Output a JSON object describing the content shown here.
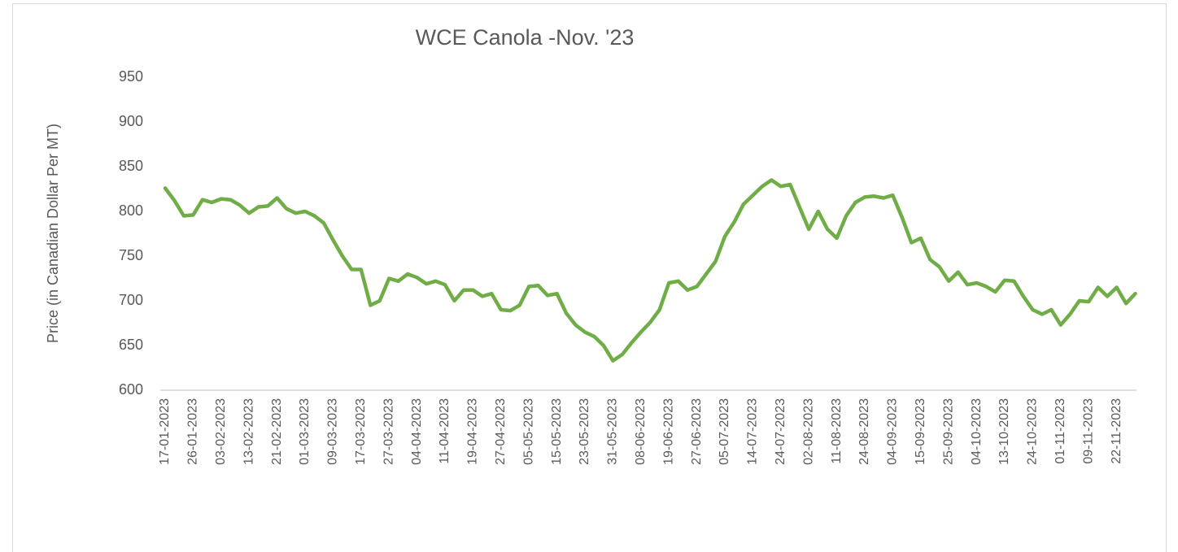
{
  "chart_data": {
    "type": "line",
    "title": "WCE Canola -Nov. '23",
    "y_label": "Price (in Canadian Dollar Per MT)",
    "categories": [
      "17-01-2023",
      null,
      null,
      "26-01-2023",
      null,
      null,
      "03-02-2023",
      null,
      null,
      "13-02-2023",
      null,
      null,
      "21-02-2023",
      null,
      null,
      "01-03-2023",
      null,
      null,
      "09-03-2023",
      null,
      null,
      "17-03-2023",
      null,
      null,
      "27-03-2023",
      null,
      null,
      "04-04-2023",
      null,
      null,
      "11-04-2023",
      null,
      null,
      "19-04-2023",
      null,
      null,
      "27-04-2023",
      null,
      null,
      "05-05-2023",
      null,
      null,
      "15-05-2023",
      null,
      null,
      "23-05-2023",
      null,
      null,
      "31-05-2023",
      null,
      null,
      "08-06-2023",
      null,
      null,
      "19-06-2023",
      null,
      null,
      "27-06-2023",
      null,
      null,
      "05-07-2023",
      null,
      null,
      "14-07-2023",
      null,
      null,
      "24-07-2023",
      null,
      null,
      "02-08-2023",
      null,
      null,
      "11-08-2023",
      null,
      null,
      "24-08-2023",
      null,
      null,
      "04-09-2023",
      null,
      null,
      "15-09-2023",
      null,
      null,
      "25-09-2023",
      null,
      null,
      "04-10-2023",
      null,
      null,
      "13-10-2023",
      null,
      null,
      "24-10-2023",
      null,
      null,
      "01-11-2023",
      null,
      null,
      "09-11-2023",
      null,
      null,
      "22-11-2023",
      null,
      null
    ],
    "values": [
      826,
      812,
      795,
      796,
      813,
      810,
      814,
      813,
      807,
      798,
      805,
      806,
      815,
      803,
      798,
      800,
      795,
      787,
      768,
      750,
      735,
      735,
      695,
      700,
      725,
      722,
      730,
      726,
      719,
      722,
      718,
      700,
      712,
      712,
      705,
      708,
      690,
      689,
      695,
      716,
      717,
      706,
      708,
      686,
      673,
      665,
      660,
      650,
      633,
      640,
      653,
      665,
      676,
      690,
      720,
      722,
      712,
      716,
      730,
      744,
      772,
      788,
      808,
      818,
      828,
      835,
      828,
      830,
      805,
      780,
      800,
      780,
      770,
      795,
      810,
      816,
      817,
      815,
      818,
      793,
      765,
      770,
      746,
      738,
      722,
      732,
      718,
      720,
      716,
      710,
      723,
      722,
      705,
      690,
      685,
      690,
      673,
      685,
      700,
      699,
      715,
      705,
      715,
      697,
      708
    ],
    "color": "#70ad47",
    "ylim": [
      600,
      950
    ],
    "yticks": [
      600,
      650,
      700,
      750,
      800,
      850,
      900,
      950
    ],
    "grid": false
  }
}
